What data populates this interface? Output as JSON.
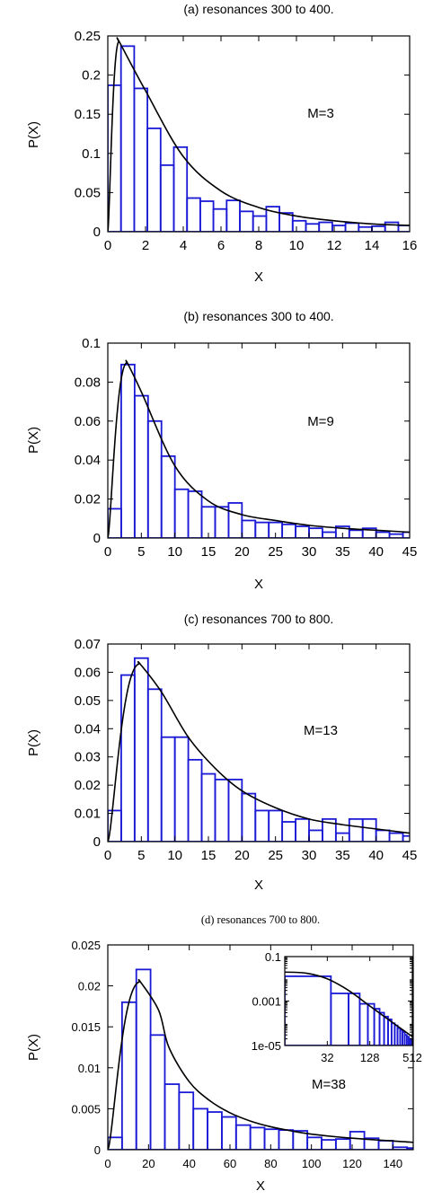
{
  "chart_data": [
    {
      "type": "bar",
      "title": "(a) resonances 300 to 400.",
      "annotation": "M=3",
      "xlabel": "X",
      "ylabel": "P(X)",
      "xlim": [
        0,
        16
      ],
      "ylim": [
        0,
        0.25
      ],
      "xticks": [
        0,
        2,
        4,
        6,
        8,
        10,
        12,
        14,
        16
      ],
      "yticks": [
        0,
        0.05,
        0.1,
        0.15,
        0.2,
        0.25
      ],
      "xtick_labels": [
        "0",
        "2",
        "4",
        "6",
        "8",
        "10",
        "12",
        "14",
        "16"
      ],
      "ytick_labels": [
        "0",
        "0.05",
        "0.1",
        "0.15",
        "0.2",
        "0.25"
      ],
      "bin_edges": [
        0,
        0.7,
        1.4,
        2.1,
        2.8,
        3.5,
        4.2,
        4.9,
        5.6,
        6.3,
        7.0,
        7.7,
        8.4,
        9.1,
        9.8,
        10.5,
        11.2,
        11.9,
        12.6,
        13.3,
        14.0,
        14.7,
        15.4,
        16.1
      ],
      "bin_values": [
        0.187,
        0.237,
        0.183,
        0.132,
        0.085,
        0.108,
        0.043,
        0.039,
        0.029,
        0.04,
        0.026,
        0.02,
        0.032,
        0.024,
        0.014,
        0.01,
        0.012,
        0.008,
        0.011,
        0.006,
        0.007,
        0.012,
        0.008
      ],
      "curve": {
        "peak_x": 0.6,
        "peak_y": 0.243,
        "tail": [
          [
            2,
            0.18
          ],
          [
            4,
            0.096
          ],
          [
            6,
            0.052
          ],
          [
            8,
            0.031
          ],
          [
            10,
            0.02
          ],
          [
            12,
            0.014
          ],
          [
            14,
            0.01
          ],
          [
            16,
            0.008
          ]
        ]
      }
    },
    {
      "type": "bar",
      "title": "(b) resonances 300 to 400.",
      "annotation": "M=9",
      "xlabel": "X",
      "ylabel": "P(X)",
      "xlim": [
        0,
        45
      ],
      "ylim": [
        0,
        0.1
      ],
      "xticks": [
        0,
        5,
        10,
        15,
        20,
        25,
        30,
        35,
        40,
        45
      ],
      "yticks": [
        0,
        0.02,
        0.04,
        0.06,
        0.08,
        0.1
      ],
      "xtick_labels": [
        "0",
        "5",
        "10",
        "15",
        "20",
        "25",
        "30",
        "35",
        "40",
        "45"
      ],
      "ytick_labels": [
        "0",
        "0.02",
        "0.04",
        "0.06",
        "0.08",
        "0.1"
      ],
      "bin_edges": [
        0,
        2,
        4,
        6,
        8,
        10,
        12,
        14,
        16,
        18,
        20,
        22,
        24,
        26,
        28,
        30,
        32,
        34,
        36,
        38,
        40,
        42,
        44,
        46
      ],
      "bin_values": [
        0.015,
        0.089,
        0.073,
        0.06,
        0.042,
        0.025,
        0.024,
        0.016,
        0.016,
        0.018,
        0.009,
        0.008,
        0.008,
        0.007,
        0.006,
        0.005,
        0.003,
        0.006,
        0.004,
        0.005,
        0.003,
        0.002,
        0.003
      ],
      "curve": {
        "peak_x": 2.9,
        "peak_y": 0.09,
        "tail": [
          [
            5,
            0.075
          ],
          [
            10,
            0.037
          ],
          [
            15,
            0.019
          ],
          [
            20,
            0.012
          ],
          [
            25,
            0.009
          ],
          [
            30,
            0.0065
          ],
          [
            35,
            0.005
          ],
          [
            40,
            0.004
          ],
          [
            45,
            0.003
          ]
        ]
      }
    },
    {
      "type": "bar",
      "title": "(c) resonances 700 to 800.",
      "annotation": "M=13",
      "xlabel": "X",
      "ylabel": "P(X)",
      "xlim": [
        0,
        45
      ],
      "ylim": [
        0,
        0.07
      ],
      "xticks": [
        0,
        5,
        10,
        15,
        20,
        25,
        30,
        35,
        40,
        45
      ],
      "yticks": [
        0,
        0.01,
        0.02,
        0.03,
        0.04,
        0.05,
        0.06,
        0.07
      ],
      "xtick_labels": [
        "0",
        "5",
        "10",
        "15",
        "20",
        "25",
        "30",
        "35",
        "40",
        "45"
      ],
      "ytick_labels": [
        "0",
        "0.01",
        "0.02",
        "0.03",
        "0.04",
        "0.05",
        "0.06",
        "0.07"
      ],
      "bin_edges": [
        0,
        2,
        4,
        6,
        8,
        10,
        12,
        14,
        16,
        18,
        20,
        22,
        24,
        26,
        28,
        30,
        32,
        34,
        36,
        38,
        40,
        42,
        44,
        46
      ],
      "bin_values": [
        0.011,
        0.059,
        0.065,
        0.054,
        0.037,
        0.037,
        0.029,
        0.024,
        0.022,
        0.022,
        0.017,
        0.011,
        0.011,
        0.007,
        0.008,
        0.004,
        0.008,
        0.003,
        0.008,
        0.008,
        0.004,
        0.003,
        0.002
      ],
      "curve": {
        "peak_x": 4.8,
        "peak_y": 0.063,
        "tail": [
          [
            8,
            0.053
          ],
          [
            12,
            0.037
          ],
          [
            16,
            0.026
          ],
          [
            20,
            0.018
          ],
          [
            25,
            0.012
          ],
          [
            30,
            0.008
          ],
          [
            35,
            0.006
          ],
          [
            40,
            0.0045
          ],
          [
            45,
            0.003
          ]
        ]
      }
    },
    {
      "type": "bar",
      "title": "(d) resonances 700 to 800.",
      "annotation": "M=38",
      "xlabel": "X",
      "ylabel": "P(X)",
      "xlim": [
        0,
        150
      ],
      "ylim": [
        0,
        0.025
      ],
      "xticks": [
        0,
        20,
        40,
        60,
        80,
        100,
        120,
        140
      ],
      "yticks": [
        0,
        0.005,
        0.01,
        0.015,
        0.02,
        0.025
      ],
      "xtick_labels": [
        "0",
        "20",
        "40",
        "60",
        "80",
        "100",
        "120",
        "140"
      ],
      "ytick_labels": [
        "0",
        "0.005",
        "0.01",
        "0.015",
        "0.02",
        "0.025"
      ],
      "bin_edges": [
        0,
        7,
        14,
        21,
        28,
        35,
        42,
        49,
        56,
        63,
        70,
        77,
        84,
        91,
        98,
        105,
        112,
        119,
        126,
        133,
        140,
        147,
        154
      ],
      "bin_values": [
        0.0015,
        0.018,
        0.022,
        0.014,
        0.008,
        0.007,
        0.005,
        0.0046,
        0.004,
        0.003,
        0.0027,
        0.0025,
        0.0024,
        0.0023,
        0.0015,
        0.0012,
        0.0013,
        0.0022,
        0.0014,
        0.0011,
        0.0003,
        0.0002
      ],
      "curve": {
        "peak_x": 16,
        "peak_y": 0.0205,
        "tail": [
          [
            25,
            0.017
          ],
          [
            30,
            0.0125
          ],
          [
            40,
            0.0083
          ],
          [
            50,
            0.006
          ],
          [
            60,
            0.0045
          ],
          [
            70,
            0.0035
          ],
          [
            80,
            0.0028
          ],
          [
            90,
            0.0023
          ],
          [
            100,
            0.0019
          ],
          [
            120,
            0.0014
          ],
          [
            150,
            0.0009
          ]
        ]
      },
      "inset": {
        "xscale": "log2",
        "yscale": "log",
        "xlim": [
          8,
          512
        ],
        "ylim": [
          1e-05,
          0.1
        ],
        "xticks": [
          32,
          128,
          512
        ],
        "xtick_labels": [
          "32",
          "128",
          "512"
        ],
        "yticks": [
          1e-05,
          0.001,
          0.1
        ],
        "ytick_labels": [
          "1e-05",
          "0.001",
          "0.1"
        ],
        "bin_edges": [
          8,
          36,
          64,
          92,
          120,
          148,
          176,
          204,
          232,
          260,
          288,
          316,
          344,
          372,
          400,
          428,
          456,
          484,
          512
        ],
        "bin_values": [
          0.013,
          0.0022,
          0.0022,
          0.00075,
          0.00075,
          0.00045,
          0.0003,
          0.0002,
          0.00015,
          0.0001,
          8e-05,
          6e-05,
          5e-05,
          4e-05,
          3e-05,
          2.5e-05,
          2e-05,
          1.8e-05
        ],
        "curve": [
          [
            8,
            0.02
          ],
          [
            16,
            0.018
          ],
          [
            32,
            0.01
          ],
          [
            64,
            0.003
          ],
          [
            128,
            0.0006
          ],
          [
            256,
            0.00012
          ],
          [
            512,
            2.5e-05
          ]
        ]
      }
    }
  ]
}
